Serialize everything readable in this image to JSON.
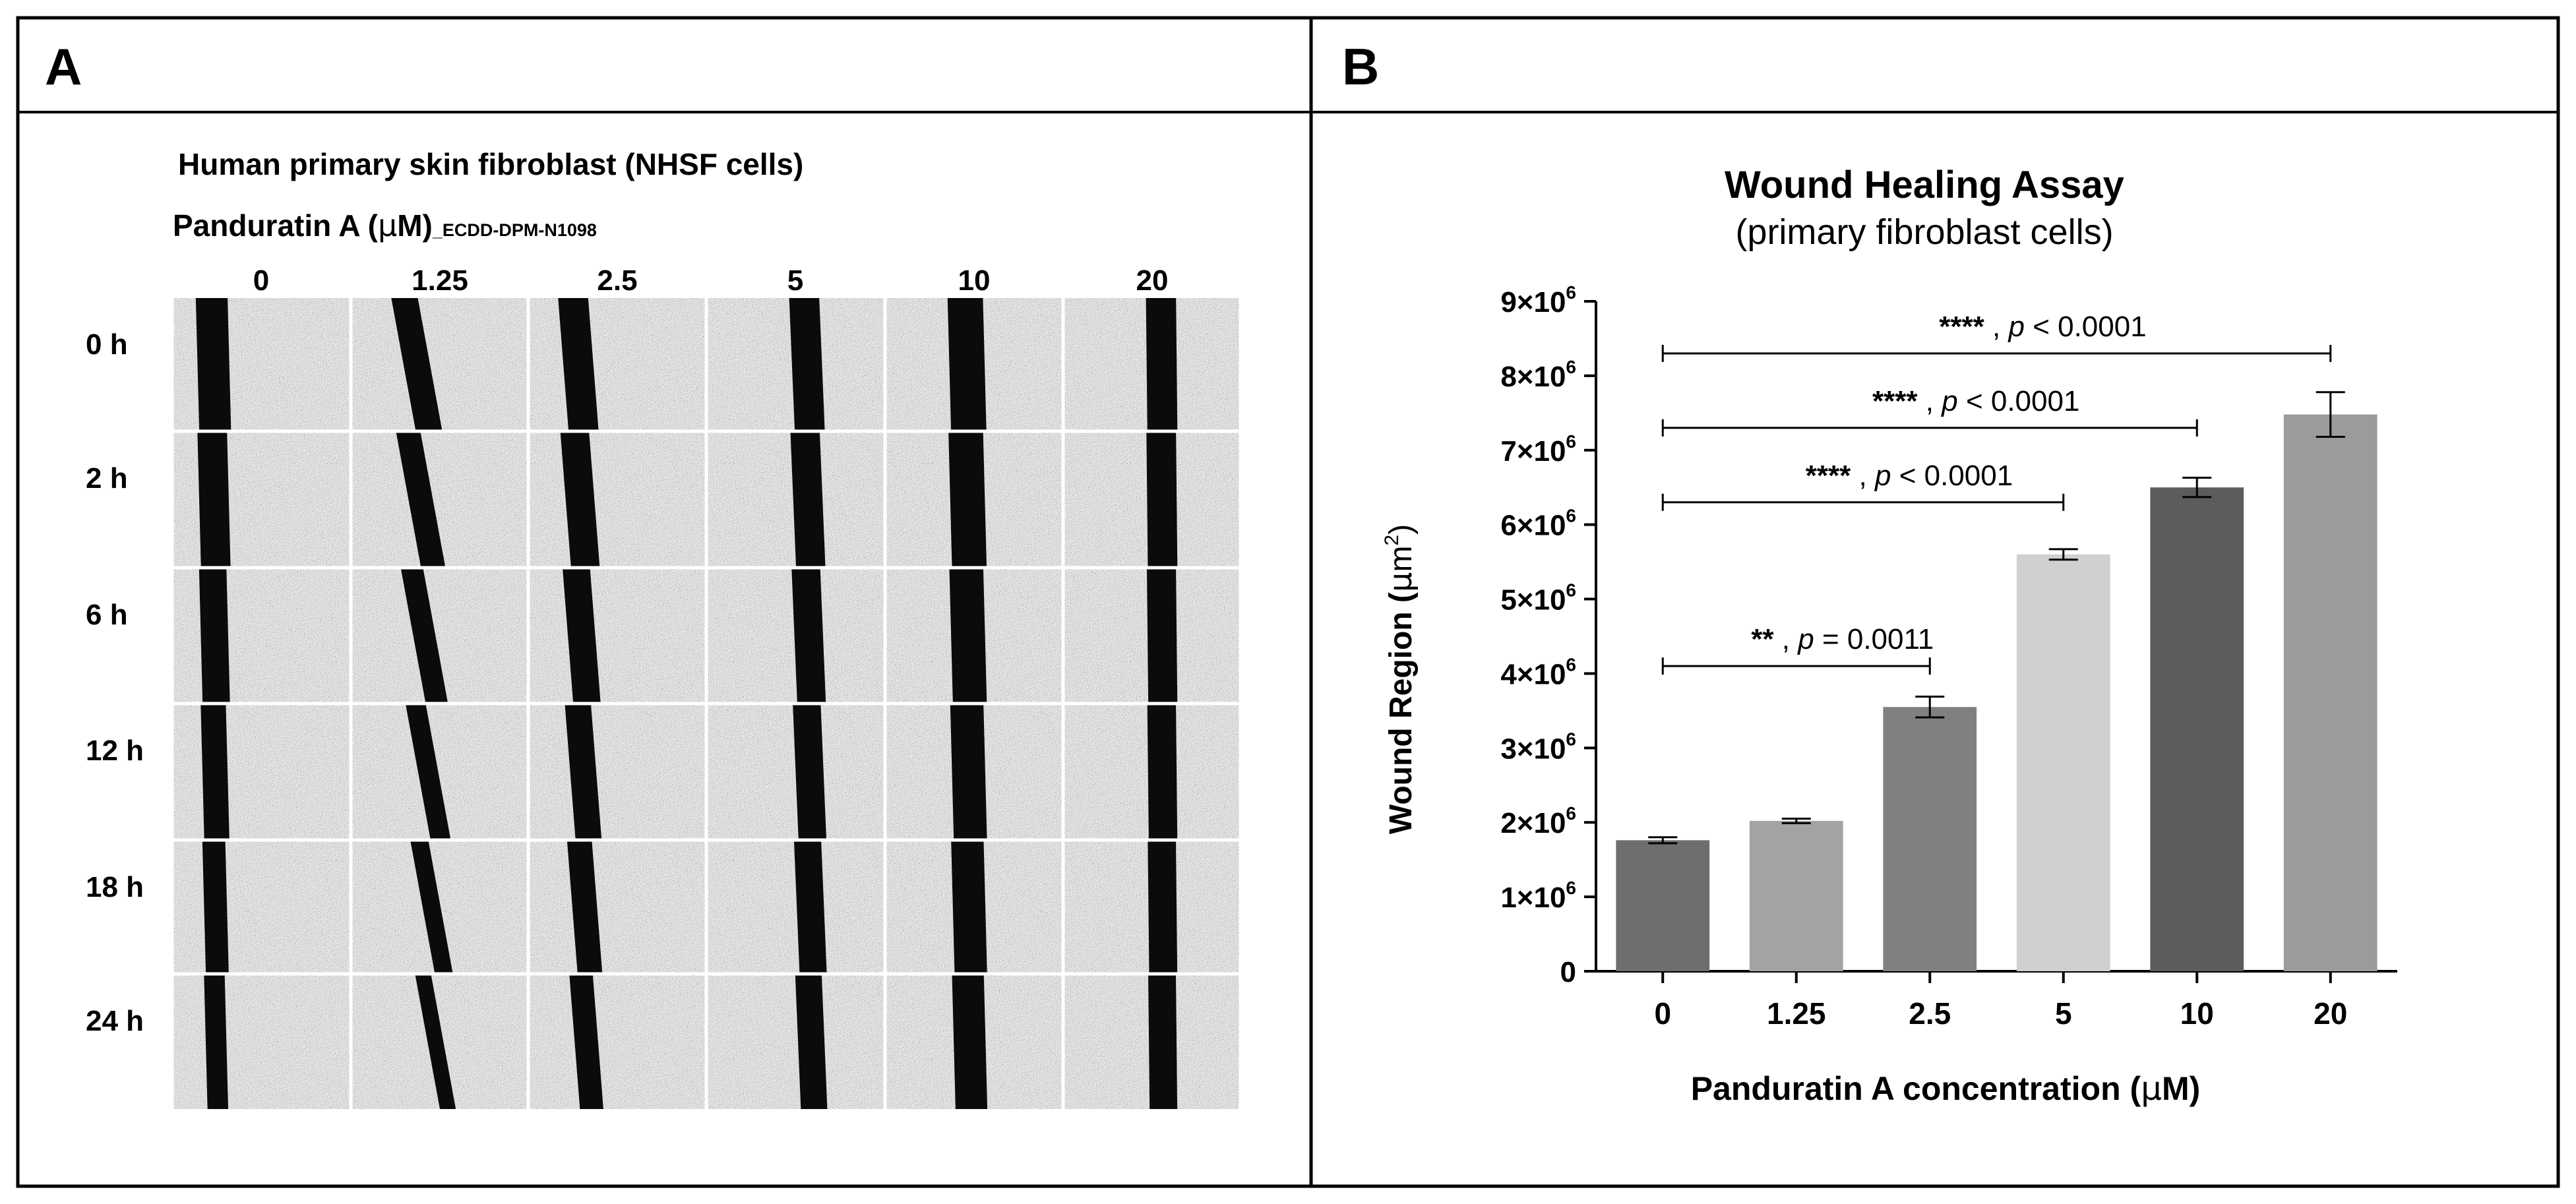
{
  "panels": {
    "a": {
      "letter": "A",
      "line1": "Human primary skin fibroblast (NHSF cells)",
      "treatment_label": "Panduratin A (",
      "mu": "μ",
      "treatment_unit": "M)",
      "compound_code": "_ECDD-DPM-N1098",
      "columns": [
        "0",
        "1.25",
        "2.5",
        "5",
        "10",
        "20"
      ],
      "rows": [
        "0 h",
        "2 h",
        "6 h",
        "12 h",
        "18 h",
        "24 h"
      ]
    },
    "b": {
      "letter": "B"
    }
  },
  "chart_data": {
    "type": "bar",
    "title": "Wound Healing Assay",
    "subtitle": "(primary fibroblast cells)",
    "xlabel": {
      "prefix": "Panduratin A concentration (",
      "mu": "μ",
      "suffix": "M)"
    },
    "ylabel": {
      "prefix": "Wound Region (",
      "mu": "μ",
      "unit": "m",
      "sup": "2",
      "suffix": ")"
    },
    "categories": [
      "0",
      "1.25",
      "2.5",
      "5",
      "10",
      "20"
    ],
    "values": [
      1760000,
      2020000,
      3550000,
      5600000,
      6500000,
      7480000
    ],
    "errors": [
      40000,
      30000,
      140000,
      70000,
      130000,
      300000
    ],
    "bar_colors": [
      "#6e6e70",
      "#a3a3a6",
      "#808083",
      "#d0d0d2",
      "#5c5c5e",
      "#9b9b9e"
    ],
    "ylim": [
      0,
      9000000
    ],
    "yticks": [
      {
        "value": 0,
        "base": "0",
        "exp": ""
      },
      {
        "value": 1000000,
        "base": "1×10",
        "exp": "6"
      },
      {
        "value": 2000000,
        "base": "2×10",
        "exp": "6"
      },
      {
        "value": 3000000,
        "base": "3×10",
        "exp": "6"
      },
      {
        "value": 4000000,
        "base": "4×10",
        "exp": "6"
      },
      {
        "value": 5000000,
        "base": "5×10",
        "exp": "6"
      },
      {
        "value": 6000000,
        "base": "6×10",
        "exp": "6"
      },
      {
        "value": 7000000,
        "base": "7×10",
        "exp": "6"
      },
      {
        "value": 8000000,
        "base": "8×10",
        "exp": "6"
      },
      {
        "value": 9000000,
        "base": "9×10",
        "exp": "6"
      }
    ],
    "grid": false,
    "legend": "none",
    "comparisons": [
      {
        "from": 0,
        "to": 2,
        "level": 4100000,
        "stars": "**",
        "sep": " , ",
        "p": "p",
        "rel": " = 0.0011"
      },
      {
        "from": 0,
        "to": 3,
        "level": 6300000,
        "stars": "****",
        "sep": " , ",
        "p": "p",
        "rel": " < 0.0001"
      },
      {
        "from": 0,
        "to": 4,
        "level": 7300000,
        "stars": "****",
        "sep": " , ",
        "p": "p",
        "rel": " < 0.0001"
      },
      {
        "from": 0,
        "to": 5,
        "level": 8300000,
        "stars": "****",
        "sep": " , ",
        "p": "p",
        "rel": " < 0.0001"
      }
    ]
  }
}
